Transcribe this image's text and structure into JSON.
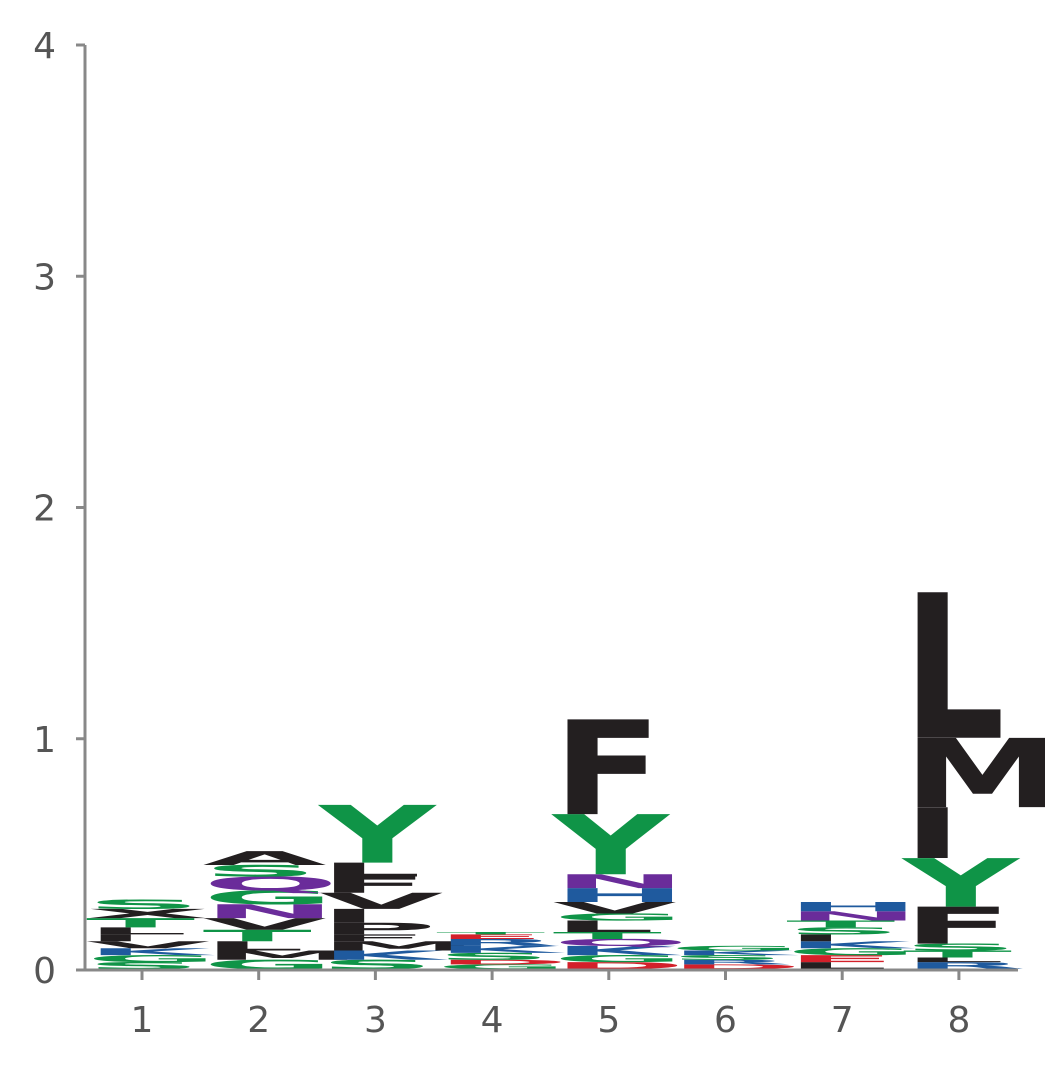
{
  "chart_data": {
    "type": "sequence-logo",
    "title": "",
    "xlabel": "",
    "ylabel": "",
    "ylim": [
      0,
      4
    ],
    "y_ticks": [
      "0",
      "1",
      "2",
      "3",
      "4"
    ],
    "positions": [
      "1",
      "2",
      "3",
      "4",
      "5",
      "6",
      "7",
      "8"
    ],
    "grid": false,
    "colors": {
      "hydrophobic": "#231f20",
      "polar": "#0f9447",
      "basic": "#1f5a9e",
      "amide": "#6a2c9a",
      "acidic": "#d3202a",
      "axis": "#888888"
    },
    "columns": [
      {
        "position": "1",
        "letters": [
          {
            "aa": "S",
            "bits": 0.03
          },
          {
            "aa": "G",
            "bits": 0.03
          },
          {
            "aa": "K",
            "bits": 0.03
          },
          {
            "aa": "V",
            "bits": 0.03
          },
          {
            "aa": "I",
            "bits": 0.03
          },
          {
            "aa": "L",
            "bits": 0.03
          },
          {
            "aa": "T",
            "bits": 0.04
          },
          {
            "aa": "X",
            "bits": 0.04
          },
          {
            "aa": "S",
            "bits": 0.04
          }
        ]
      },
      {
        "position": "2",
        "letters": [
          {
            "aa": "G",
            "bits": 0.04
          },
          {
            "aa": "M",
            "bits": 0.04
          },
          {
            "aa": "L",
            "bits": 0.04
          },
          {
            "aa": "T",
            "bits": 0.05
          },
          {
            "aa": "V",
            "bits": 0.05
          },
          {
            "aa": "N",
            "bits": 0.06
          },
          {
            "aa": "G",
            "bits": 0.06
          },
          {
            "aa": "Q",
            "bits": 0.06
          },
          {
            "aa": "S",
            "bits": 0.05
          },
          {
            "aa": "A",
            "bits": 0.06
          }
        ]
      },
      {
        "position": "3",
        "letters": [
          {
            "aa": "S",
            "bits": 0.04
          },
          {
            "aa": "K",
            "bits": 0.04
          },
          {
            "aa": "M",
            "bits": 0.04
          },
          {
            "aa": "F",
            "bits": 0.03
          },
          {
            "aa": "P",
            "bits": 0.05
          },
          {
            "aa": "I",
            "bits": 0.06
          },
          {
            "aa": "V",
            "bits": 0.07
          },
          {
            "aa": "F",
            "bits": 0.07
          },
          {
            "aa": "L",
            "bits": 0.06
          },
          {
            "aa": "Y",
            "bits": 0.25
          }
        ]
      },
      {
        "position": "4",
        "letters": [
          {
            "aa": "G",
            "bits": 0.02
          },
          {
            "aa": "D",
            "bits": 0.02
          },
          {
            "aa": "S",
            "bits": 0.03
          },
          {
            "aa": "K",
            "bits": 0.03
          },
          {
            "aa": "R",
            "bits": 0.03
          },
          {
            "aa": "E",
            "bits": 0.02
          },
          {
            "aa": "T",
            "bits": 0.01
          }
        ]
      },
      {
        "position": "5",
        "letters": [
          {
            "aa": "D",
            "bits": 0.03
          },
          {
            "aa": "G",
            "bits": 0.03
          },
          {
            "aa": "K",
            "bits": 0.04
          },
          {
            "aa": "Q",
            "bits": 0.03
          },
          {
            "aa": "T",
            "bits": 0.03
          },
          {
            "aa": "L",
            "bits": 0.05
          },
          {
            "aa": "G",
            "bits": 0.03
          },
          {
            "aa": "V",
            "bits": 0.05
          },
          {
            "aa": "H",
            "bits": 0.06
          },
          {
            "aa": "N",
            "bits": 0.06
          },
          {
            "aa": "Y",
            "bits": 0.26
          },
          {
            "aa": "F",
            "bits": 0.41
          }
        ]
      },
      {
        "position": "6",
        "letters": [
          {
            "aa": "D",
            "bits": 0.02
          },
          {
            "aa": "R",
            "bits": 0.02
          },
          {
            "aa": "S",
            "bits": 0.02
          },
          {
            "aa": "K",
            "bits": 0.02
          },
          {
            "aa": "G",
            "bits": 0.02
          }
        ]
      },
      {
        "position": "7",
        "letters": [
          {
            "aa": "L",
            "bits": 0.03
          },
          {
            "aa": "E",
            "bits": 0.03
          },
          {
            "aa": "G",
            "bits": 0.03
          },
          {
            "aa": "K",
            "bits": 0.03
          },
          {
            "aa": "I",
            "bits": 0.03
          },
          {
            "aa": "S",
            "bits": 0.03
          },
          {
            "aa": "T",
            "bits": 0.03
          },
          {
            "aa": "N",
            "bits": 0.04
          },
          {
            "aa": "H",
            "bits": 0.04
          }
        ]
      },
      {
        "position": "8",
        "letters": [
          {
            "aa": "R",
            "bits": 0.03
          },
          {
            "aa": "L",
            "bits": 0.02
          },
          {
            "aa": "T",
            "bits": 0.03
          },
          {
            "aa": "S",
            "bits": 0.03
          },
          {
            "aa": "F",
            "bits": 0.16
          },
          {
            "aa": "Y",
            "bits": 0.21
          },
          {
            "aa": "I",
            "bits": 0.22
          },
          {
            "aa": "M",
            "bits": 0.3
          },
          {
            "aa": "L",
            "bits": 0.63
          }
        ]
      }
    ]
  }
}
